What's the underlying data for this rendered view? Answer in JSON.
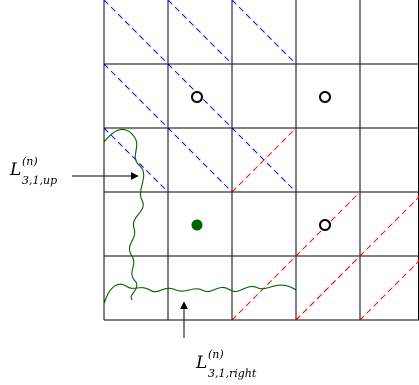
{
  "grid": {
    "columns": 5,
    "rows": 5,
    "line_color": "#000000"
  },
  "colors": {
    "blue_dashes": "#0000ff",
    "red_dashes": "#ff0000",
    "curve": "#006400",
    "filled_dot": "#006400",
    "open_circle": "#000000"
  },
  "blue_lines": [
    {
      "from": [
        1,
        0
      ],
      "to": [
        2,
        1
      ]
    },
    {
      "from": [
        2,
        0
      ],
      "to": [
        3,
        1
      ]
    },
    {
      "from": [
        3,
        0
      ],
      "to": [
        4,
        1
      ]
    },
    {
      "from": [
        1,
        1
      ],
      "to": [
        3,
        3
      ]
    },
    {
      "from": [
        2,
        1
      ],
      "to": [
        4,
        3
      ]
    },
    {
      "from": [
        1,
        2
      ],
      "to": [
        2,
        3
      ]
    }
  ],
  "red_lines": [
    {
      "from": [
        3,
        2
      ],
      "to": [
        4,
        3
      ]
    },
    {
      "from": [
        3,
        3
      ],
      "to": [
        5,
        5
      ]
    },
    {
      "from": [
        3,
        4
      ],
      "to": [
        5,
        6
      ]
    },
    {
      "from": [
        4,
        3
      ],
      "to": [
        6,
        5
      ]
    },
    {
      "from": [
        3,
        5
      ],
      "to": [
        6,
        6
      ]
    },
    {
      "from": [
        4,
        4
      ],
      "to": [
        6,
        6
      ]
    },
    {
      "from": [
        4,
        5
      ],
      "to": [
        5,
        6
      ]
    },
    {
      "from": [
        5,
        5
      ],
      "to": [
        6,
        6
      ]
    }
  ],
  "open_circles": [
    [
      2.5,
      1.5
    ],
    [
      4.5,
      1.5
    ],
    [
      4.5,
      3.5
    ]
  ],
  "filled_dots": [
    [
      2.5,
      3.5
    ]
  ],
  "labels": {
    "up": {
      "main": "L",
      "sup": "(n)",
      "sub": "3,1,up"
    },
    "right": {
      "main": "L",
      "sup": "(n)",
      "sub": "3,1,right"
    }
  }
}
